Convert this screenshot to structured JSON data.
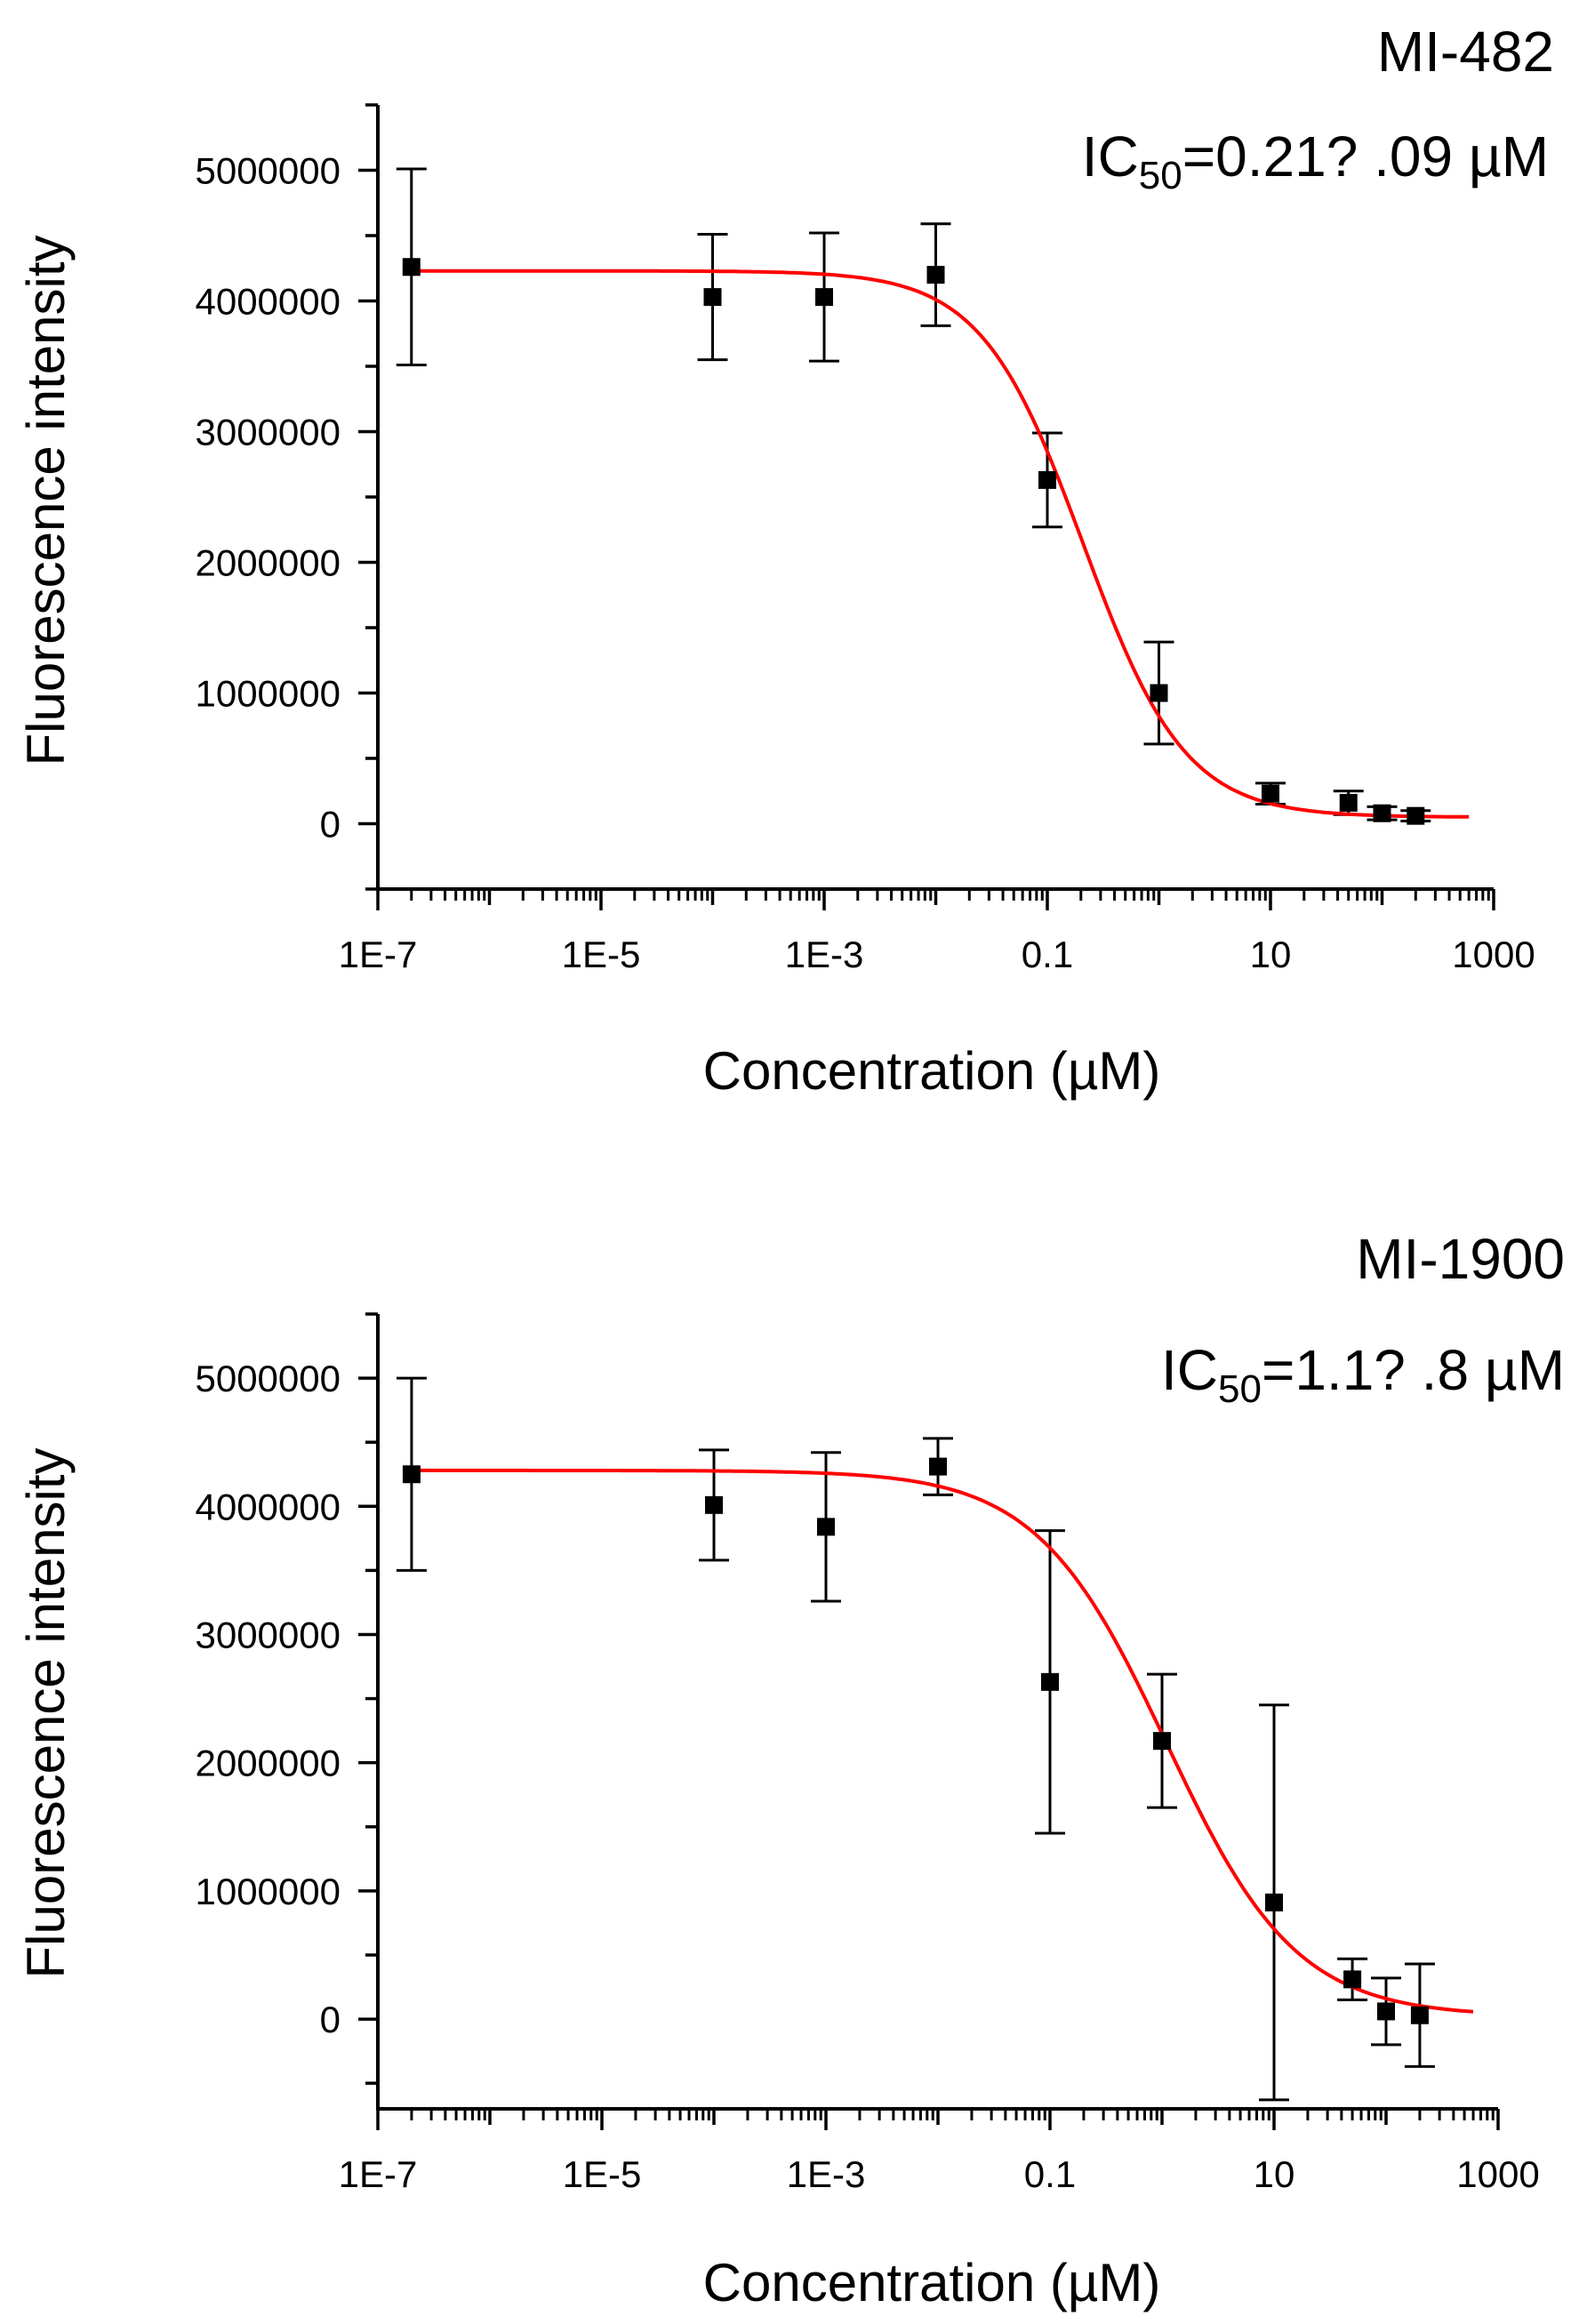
{
  "figure": {
    "background": "#ffffff",
    "axis_color": "#000000",
    "marker_color": "#000000",
    "fit_color": "#ff0000"
  },
  "chart_data": [
    {
      "type": "scatter",
      "title": "MI-482",
      "ic50": {
        "prefix": "IC",
        "subscript": "50",
        "value": "=0.21?  .09 µM"
      },
      "xlabel": "Concentration (µM)",
      "ylabel": "Fluorescence intensity",
      "x_scale": "log10",
      "xlim": [
        1e-07,
        1000
      ],
      "ylim": [
        -500000,
        5500000
      ],
      "x_ticks": [
        1e-07,
        1e-05,
        0.001,
        0.1,
        10,
        1000
      ],
      "x_tick_labels": [
        "1E-7",
        "1E-5",
        "1E-3",
        "0.1",
        "10",
        "1000"
      ],
      "y_ticks": [
        0,
        1000000,
        2000000,
        3000000,
        4000000,
        5000000
      ],
      "y_tick_labels": [
        "0",
        "1000000",
        "2000000",
        "3000000",
        "4000000",
        "5000000"
      ],
      "series": [
        {
          "name": "data",
          "x": [
            2e-07,
            0.0001,
            0.001,
            0.01,
            0.1,
            1,
            10,
            50,
            100,
            200
          ],
          "y": [
            4260000,
            4030000,
            4030000,
            4200000,
            2630000,
            1000000,
            230000,
            160000,
            80000,
            60000
          ],
          "yerr": [
            750000,
            480000,
            490000,
            390000,
            360000,
            390000,
            80000,
            90000,
            50000,
            40000
          ]
        },
        {
          "name": "fit",
          "model": "logistic",
          "top": 4230000,
          "bottom": 50000,
          "ic50": 0.21,
          "hill": 0.95,
          "x_range": [
            2e-07,
            600
          ]
        }
      ]
    },
    {
      "type": "scatter",
      "title": "MI-1900",
      "ic50": {
        "prefix": "IC",
        "subscript": "50",
        "value": "=1.1?  .8 µM"
      },
      "xlabel": "Concentration (µM)",
      "ylabel": "Fluorescence intensity",
      "x_scale": "log10",
      "xlim": [
        1e-07,
        1000
      ],
      "ylim": [
        -700000,
        5500000
      ],
      "x_ticks": [
        1e-07,
        1e-05,
        0.001,
        0.1,
        10,
        1000
      ],
      "x_tick_labels": [
        "1E-7",
        "1E-5",
        "1E-3",
        "0.1",
        "10",
        "1000"
      ],
      "y_ticks": [
        0,
        1000000,
        2000000,
        3000000,
        4000000,
        5000000
      ],
      "y_tick_labels": [
        "0",
        "1000000",
        "2000000",
        "3000000",
        "4000000",
        "5000000"
      ],
      "series": [
        {
          "name": "data",
          "x": [
            2e-07,
            0.0001,
            0.001,
            0.01,
            0.1,
            1,
            10,
            50,
            100,
            200
          ],
          "y": [
            4250000,
            4010000,
            3840000,
            4310000,
            2630000,
            2170000,
            910000,
            310000,
            60000,
            30000
          ],
          "yerr": [
            750000,
            430000,
            580000,
            220000,
            1180000,
            520000,
            1540000,
            160000,
            260000,
            400000
          ]
        },
        {
          "name": "fit",
          "model": "logistic",
          "top": 4280000,
          "bottom": 20000,
          "ic50": 1.1,
          "hill": 0.75,
          "x_range": [
            2e-07,
            600
          ]
        }
      ]
    }
  ]
}
